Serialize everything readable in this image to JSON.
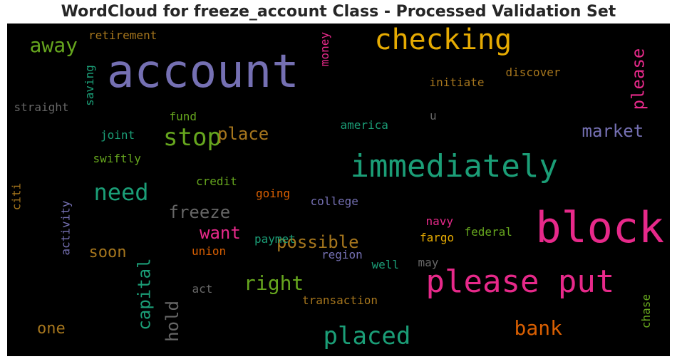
{
  "title": "WordCloud for freeze_account Class - Processed Validation Set",
  "colors": {
    "purple": "#7570b3",
    "teal": "#1b9e77",
    "orange": "#d95f02",
    "magenta": "#e7298a",
    "green": "#66a61e",
    "gold": "#e6ab02",
    "brown": "#a6761d",
    "gray": "#666666"
  },
  "words": [
    {
      "text": "account",
      "color": "purple",
      "rotate": false
    },
    {
      "text": "checking",
      "color": "gold",
      "rotate": false
    },
    {
      "text": "block",
      "color": "magenta",
      "rotate": false
    },
    {
      "text": "immediately",
      "color": "teal",
      "rotate": false
    },
    {
      "text": "please put",
      "color": "magenta",
      "rotate": false
    },
    {
      "text": "placed",
      "color": "teal",
      "rotate": false
    },
    {
      "text": "stop",
      "color": "green",
      "rotate": false
    },
    {
      "text": "need",
      "color": "teal",
      "rotate": false
    },
    {
      "text": "away",
      "color": "green",
      "rotate": false
    },
    {
      "text": "please",
      "color": "magenta",
      "rotate": true
    },
    {
      "text": "bank",
      "color": "orange",
      "rotate": false
    },
    {
      "text": "right",
      "color": "green",
      "rotate": false
    },
    {
      "text": "capital",
      "color": "teal",
      "rotate": true
    },
    {
      "text": "hold",
      "color": "gray",
      "rotate": true
    },
    {
      "text": "possible",
      "color": "brown",
      "rotate": false
    },
    {
      "text": "freeze",
      "color": "gray",
      "rotate": false
    },
    {
      "text": "place",
      "color": "brown",
      "rotate": false
    },
    {
      "text": "market",
      "color": "purple",
      "rotate": false
    },
    {
      "text": "want",
      "color": "magenta",
      "rotate": false
    },
    {
      "text": "soon",
      "color": "brown",
      "rotate": false
    },
    {
      "text": "one",
      "color": "brown",
      "rotate": false
    },
    {
      "text": "retirement",
      "color": "brown",
      "rotate": false
    },
    {
      "text": "money",
      "color": "magenta",
      "rotate": true
    },
    {
      "text": "discover",
      "color": "brown",
      "rotate": false
    },
    {
      "text": "initiate",
      "color": "brown",
      "rotate": false
    },
    {
      "text": "saving",
      "color": "teal",
      "rotate": true
    },
    {
      "text": "straight",
      "color": "gray",
      "rotate": false
    },
    {
      "text": "fund",
      "color": "green",
      "rotate": false
    },
    {
      "text": "u",
      "color": "gray",
      "rotate": false
    },
    {
      "text": "joint",
      "color": "teal",
      "rotate": false
    },
    {
      "text": "america",
      "color": "teal",
      "rotate": false
    },
    {
      "text": "swiftly",
      "color": "green",
      "rotate": false
    },
    {
      "text": "credit",
      "color": "green",
      "rotate": false
    },
    {
      "text": "citi",
      "color": "brown",
      "rotate": true
    },
    {
      "text": "activity",
      "color": "purple",
      "rotate": true
    },
    {
      "text": "going",
      "color": "orange",
      "rotate": false
    },
    {
      "text": "college",
      "color": "purple",
      "rotate": false
    },
    {
      "text": "paymet",
      "color": "teal",
      "rotate": false
    },
    {
      "text": "navy",
      "color": "magenta",
      "rotate": false
    },
    {
      "text": "fargo",
      "color": "gold",
      "rotate": false
    },
    {
      "text": "federal",
      "color": "green",
      "rotate": false
    },
    {
      "text": "union",
      "color": "orange",
      "rotate": false
    },
    {
      "text": "region",
      "color": "purple",
      "rotate": false
    },
    {
      "text": "well",
      "color": "teal",
      "rotate": false
    },
    {
      "text": "may",
      "color": "gray",
      "rotate": false
    },
    {
      "text": "act",
      "color": "gray",
      "rotate": false
    },
    {
      "text": "transaction",
      "color": "brown",
      "rotate": false
    },
    {
      "text": "chase",
      "color": "green",
      "rotate": true
    }
  ]
}
